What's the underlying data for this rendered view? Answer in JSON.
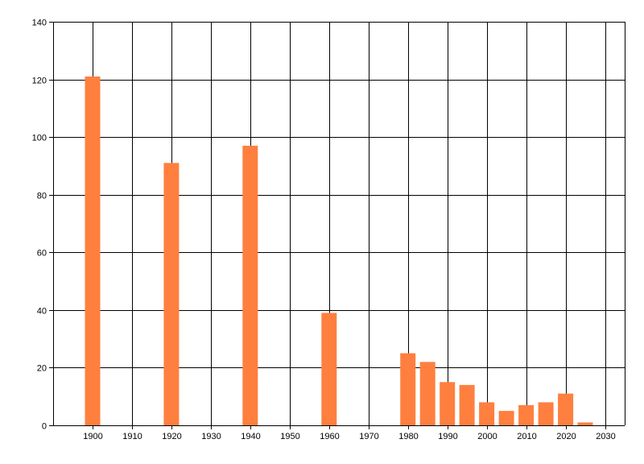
{
  "chart_data": {
    "type": "bar",
    "title": "",
    "xlabel": "",
    "ylabel": "",
    "xlim": [
      1890,
      2035
    ],
    "ylim": [
      0,
      140
    ],
    "x_ticks": [
      1900,
      1910,
      1920,
      1930,
      1940,
      1950,
      1960,
      1970,
      1980,
      1990,
      2000,
      2010,
      2020,
      2030
    ],
    "x_tick_labels": [
      "1900",
      "1910",
      "1920",
      "1930",
      "1940",
      "1950",
      "1960",
      "1970",
      "1980",
      "1990",
      "2000",
      "2010",
      "2020",
      "2030"
    ],
    "y_ticks": [
      0,
      20,
      40,
      60,
      80,
      100,
      120,
      140
    ],
    "y_tick_labels": [
      "0",
      "20",
      "40",
      "60",
      "80",
      "100",
      "120",
      "140"
    ],
    "grid": true,
    "legend": "none",
    "bar_color": "#ff7f3f",
    "series": [
      {
        "x": [
          1900,
          1920,
          1940,
          1960,
          1980,
          1985,
          1990,
          1995,
          2000,
          2005,
          2010,
          2015,
          2020,
          2025
        ],
        "values": [
          121,
          91,
          97,
          39,
          25,
          22,
          15,
          14,
          8,
          5,
          7,
          8,
          11,
          1
        ]
      }
    ]
  }
}
